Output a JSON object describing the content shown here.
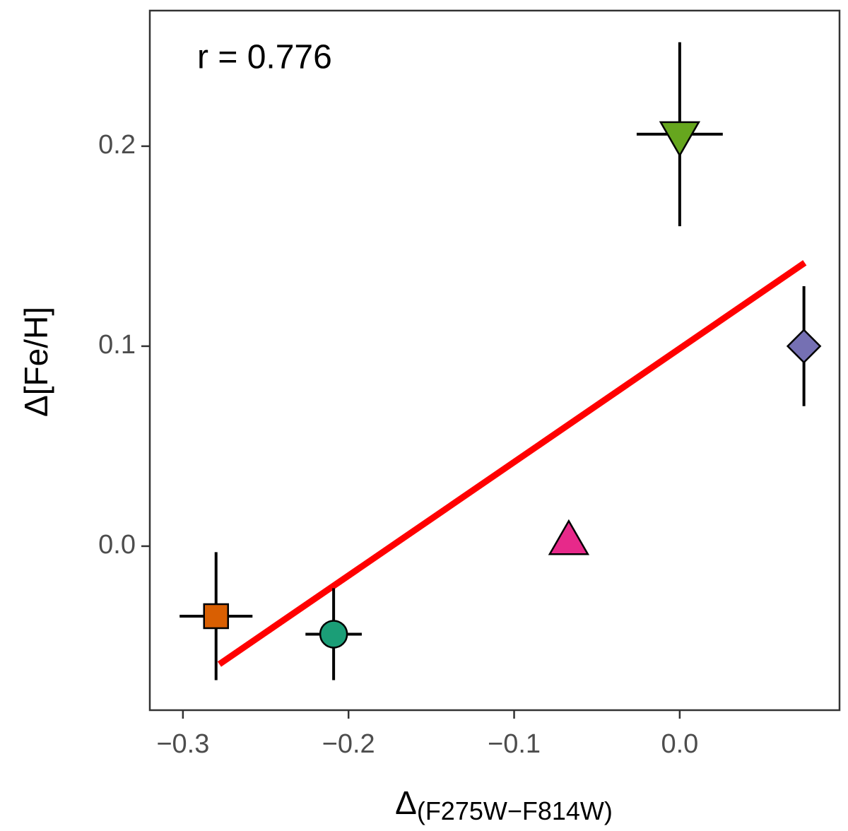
{
  "chart_data": {
    "type": "scatter",
    "annotation": "r =  0.776",
    "ylabel": "Δ[Fe/H]",
    "xlabel": {
      "symbol": "Δ",
      "subscript": "(F275W−F814W)"
    },
    "xlim": [
      -0.32,
      0.0965
    ],
    "ylim": [
      -0.082,
      0.2678
    ],
    "xticks": [
      {
        "value": -0.3,
        "label": "−0.3"
      },
      {
        "value": -0.2,
        "label": "−0.2"
      },
      {
        "value": -0.1,
        "label": "−0.1"
      },
      {
        "value": 0,
        "label": "0.0"
      }
    ],
    "yticks": [
      {
        "value": 0,
        "label": "0.0"
      },
      0.1,
      0.2
    ],
    "grid": false,
    "points": [
      {
        "x": -0.28,
        "y": -0.035,
        "xerr": 0.022,
        "yerr": 0.032,
        "marker": "square",
        "color": "#d95f02"
      },
      {
        "x": -0.209,
        "y": -0.044,
        "xerr": 0.017,
        "yerr": 0.023,
        "marker": "circle",
        "color": "#1b9e77"
      },
      {
        "x": -0.067,
        "y": 0.002,
        "marker": "triangle",
        "color": "#e7298a"
      },
      {
        "x": 0.0,
        "y": 0.206,
        "xerr": 0.026,
        "yerr": 0.046,
        "marker": "triangle-down",
        "color": "#66a61e"
      },
      {
        "x": 0.075,
        "y": 0.1,
        "yerr": 0.03,
        "marker": "diamond",
        "color": "#7570b3"
      }
    ],
    "fit": {
      "x": [
        -0.278,
        0.0755
      ],
      "y": [
        -0.059,
        0.1417
      ],
      "color": "#ff0000"
    }
  }
}
